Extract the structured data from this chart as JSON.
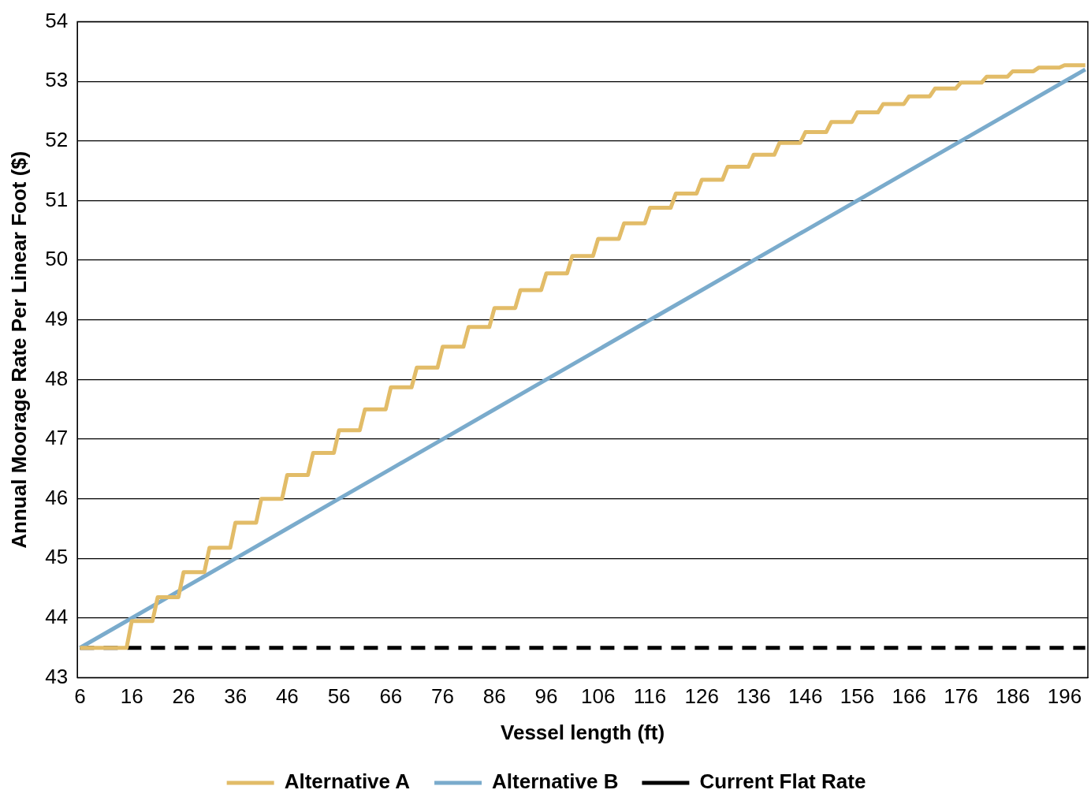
{
  "chart_data": {
    "type": "line",
    "xlabel": "Vessel length (ft)",
    "ylabel": "Annual Moorage Rate Per Linear Foot ($)",
    "xlim": [
      5.5,
      200.5
    ],
    "xticks": [
      6,
      16,
      26,
      36,
      46,
      56,
      66,
      76,
      86,
      96,
      106,
      116,
      126,
      136,
      146,
      156,
      166,
      176,
      186,
      196
    ],
    "ylim": [
      43,
      54
    ],
    "yticks": [
      43,
      44,
      45,
      46,
      47,
      48,
      49,
      50,
      51,
      52,
      53,
      54
    ],
    "grid": "y",
    "legend": "bottom",
    "marker": "none",
    "series": [
      {
        "name": "Alternative A",
        "color": "#e2bc68",
        "x": [
          6,
          15,
          16,
          20,
          21,
          25,
          26,
          30,
          31,
          35,
          36,
          40,
          41,
          45,
          46,
          50,
          51,
          55,
          56,
          60,
          61,
          65,
          66,
          70,
          71,
          75,
          76,
          80,
          81,
          85,
          86,
          90,
          91,
          95,
          96,
          100,
          101,
          105,
          106,
          110,
          111,
          115,
          116,
          120,
          121,
          125,
          126,
          130,
          131,
          135,
          136,
          140,
          141,
          145,
          146,
          150,
          151,
          155,
          156,
          160,
          161,
          165,
          166,
          170,
          171,
          175,
          176,
          180,
          181,
          185,
          186,
          190,
          191,
          195,
          196,
          200
        ],
        "values": [
          43.5,
          43.5,
          43.95,
          43.95,
          44.35,
          44.35,
          44.77,
          44.77,
          45.18,
          45.18,
          45.6,
          45.6,
          46.0,
          46.0,
          46.4,
          46.4,
          46.77,
          46.77,
          47.15,
          47.15,
          47.5,
          47.5,
          47.87,
          47.87,
          48.2,
          48.2,
          48.55,
          48.55,
          48.88,
          48.88,
          49.2,
          49.2,
          49.5,
          49.5,
          49.78,
          49.78,
          50.07,
          50.07,
          50.36,
          50.36,
          50.62,
          50.62,
          50.88,
          50.88,
          51.12,
          51.12,
          51.35,
          51.35,
          51.57,
          51.57,
          51.77,
          51.77,
          51.97,
          51.97,
          52.15,
          52.15,
          52.32,
          52.32,
          52.48,
          52.48,
          52.62,
          52.62,
          52.75,
          52.75,
          52.88,
          52.88,
          52.98,
          52.98,
          53.08,
          53.08,
          53.17,
          53.17,
          53.23,
          53.23,
          53.27,
          53.27
        ]
      },
      {
        "name": "Alternative B",
        "color": "#7aabcc",
        "x": [
          6,
          16,
          26,
          36,
          46,
          56,
          66,
          76,
          86,
          96,
          106,
          116,
          126,
          136,
          146,
          156,
          166,
          176,
          186,
          196,
          200
        ],
        "values": [
          43.5,
          44.0,
          44.5,
          45.0,
          45.5,
          46.0,
          46.5,
          47.0,
          47.5,
          48.0,
          48.5,
          49.0,
          49.5,
          50.0,
          50.5,
          51.0,
          51.5,
          52.0,
          52.5,
          53.0,
          53.2
        ]
      },
      {
        "name": "Current Flat Rate",
        "color": "#000000",
        "line_style": "dashed",
        "x": [
          6,
          200
        ],
        "values": [
          43.5,
          43.5
        ]
      }
    ]
  }
}
